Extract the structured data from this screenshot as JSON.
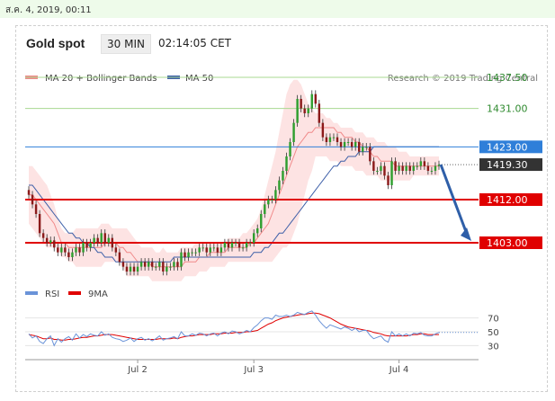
{
  "timestamp": "ส.ค. 4, 2019, 00:11",
  "header": {
    "instrument": "Gold spot",
    "timeframe": "30 MIN",
    "time": "02:14:05 CET"
  },
  "colors": {
    "candle_up": "#2e9e2e",
    "candle_down": "#8b1a1a",
    "bollinger": "#f08a8a",
    "bollinger_fill": "#fde0e0",
    "ma50": "#3d5fa8",
    "level_red": "#e00000",
    "level_green": "#a8d890",
    "level_blue": "#2f7fd9",
    "price": "#333333",
    "rsi": "#6a93d8",
    "rsi_ma": "#e00000",
    "arrow": "#2f5fa8"
  },
  "chart_data": [
    {
      "type": "candlestick",
      "legend": [
        {
          "label": "MA 20 + Bollinger Bands",
          "color": "#f08a8a"
        },
        {
          "label": "MA 50",
          "color": "#3d5fa8"
        }
      ],
      "credit": "Research © 2019 Trading Central",
      "x_tick_labels": [
        "Jul 2",
        "Jul 3",
        "Jul 4"
      ],
      "ylim": [
        1397,
        1442
      ],
      "levels": [
        {
          "value": 1437.5,
          "label": "1437.50",
          "style": "green-line"
        },
        {
          "value": 1431.0,
          "label": "1431.00",
          "style": "green-line"
        },
        {
          "value": 1423.0,
          "label": "1423.00",
          "style": "blue-box"
        },
        {
          "value": 1419.3,
          "label": "1419.30",
          "style": "current-price"
        },
        {
          "value": 1412.0,
          "label": "1412.00",
          "style": "red-box"
        },
        {
          "value": 1403.0,
          "label": "1403.00",
          "style": "red-box"
        }
      ],
      "close": [
        1413,
        1411,
        1409,
        1405,
        1404,
        1403,
        1403.5,
        1402,
        1401,
        1402,
        1401,
        1400,
        1401,
        1402,
        1401,
        1403,
        1402,
        1403,
        1404,
        1403,
        1405,
        1403,
        1404,
        1402,
        1401,
        1399,
        1398,
        1397,
        1398,
        1397,
        1398,
        1399,
        1398,
        1399,
        1398,
        1398,
        1399,
        1397,
        1398,
        1398,
        1399,
        1398,
        1401,
        1400,
        1401,
        1401,
        1401,
        1402,
        1402,
        1401,
        1402,
        1402,
        1401,
        1402,
        1403,
        1402,
        1403,
        1403,
        1402,
        1402,
        1403,
        1403,
        1405,
        1406,
        1409,
        1411,
        1412,
        1412,
        1414,
        1416,
        1418,
        1421,
        1424,
        1428,
        1433,
        1431,
        1430,
        1431,
        1434,
        1432,
        1428,
        1425,
        1424,
        1425,
        1425,
        1424,
        1423,
        1424,
        1424,
        1423,
        1424,
        1422,
        1423,
        1423,
        1420,
        1418,
        1418,
        1419,
        1417,
        1415,
        1420,
        1418,
        1419,
        1418,
        1419,
        1418,
        1419,
        1419,
        1420,
        1419,
        1418,
        1418,
        1419,
        1419.3
      ],
      "bollinger_upper": [
        1419,
        1419,
        1418,
        1417,
        1416,
        1415,
        1413,
        1411,
        1408,
        1406,
        1405,
        1405,
        1405,
        1406,
        1406,
        1406,
        1406,
        1406,
        1406,
        1406,
        1407,
        1407,
        1407,
        1406,
        1406,
        1406,
        1406,
        1406,
        1405,
        1404,
        1403,
        1402,
        1402,
        1402,
        1402,
        1401,
        1401,
        1402,
        1401,
        1401,
        1401,
        1401,
        1402,
        1402,
        1402,
        1402,
        1403,
        1403,
        1403,
        1403,
        1403,
        1403,
        1403,
        1403,
        1403,
        1404,
        1404,
        1404,
        1404,
        1405,
        1405,
        1406,
        1407,
        1408,
        1410,
        1413,
        1416,
        1419,
        1422,
        1426,
        1430,
        1434,
        1436,
        1437,
        1437,
        1436,
        1434,
        1432,
        1431,
        1430,
        1430,
        1430,
        1429,
        1429,
        1428,
        1428,
        1427,
        1427,
        1427,
        1427,
        1426,
        1426,
        1426,
        1425,
        1425,
        1425,
        1424,
        1424,
        1424,
        1423,
        1423,
        1423,
        1422,
        1422,
        1422,
        1421,
        1421,
        1421,
        1421,
        1421,
        1421,
        1421,
        1421,
        1421
      ],
      "bollinger_middle": [
        1413,
        1413,
        1412,
        1411,
        1410,
        1409,
        1408,
        1407,
        1405,
        1403,
        1403,
        1402,
        1402,
        1402,
        1402,
        1402,
        1402,
        1402,
        1402,
        1402,
        1402,
        1403,
        1403,
        1403,
        1403,
        1402,
        1402,
        1401,
        1401,
        1400,
        1399,
        1399,
        1399,
        1399,
        1398,
        1398,
        1398,
        1398,
        1398,
        1398,
        1398,
        1398,
        1398,
        1399,
        1399,
        1399,
        1399,
        1400,
        1400,
        1400,
        1401,
        1401,
        1401,
        1401,
        1401,
        1402,
        1402,
        1402,
        1402,
        1402,
        1402,
        1403,
        1403,
        1404,
        1405,
        1406,
        1407,
        1409,
        1411,
        1413,
        1415,
        1417,
        1419,
        1421,
        1423,
        1424,
        1425,
        1426,
        1426,
        1427,
        1427,
        1427,
        1427,
        1427,
        1427,
        1426,
        1426,
        1425,
        1425,
        1425,
        1424,
        1424,
        1423,
        1423,
        1422,
        1421,
        1421,
        1420,
        1420,
        1420,
        1420,
        1419,
        1419,
        1419,
        1419,
        1419,
        1419,
        1419,
        1419,
        1419,
        1419,
        1419,
        1419,
        1419
      ],
      "bollinger_lower": [
        1407,
        1406,
        1405,
        1404,
        1403,
        1402,
        1402,
        1402,
        1402,
        1400,
        1400,
        1399,
        1399,
        1398,
        1398,
        1398,
        1398,
        1398,
        1398,
        1398,
        1398,
        1399,
        1399,
        1399,
        1399,
        1399,
        1398,
        1396,
        1396,
        1396,
        1396,
        1396,
        1396,
        1396,
        1395,
        1395,
        1395,
        1395,
        1395,
        1395,
        1395,
        1395,
        1395,
        1396,
        1396,
        1396,
        1396,
        1397,
        1397,
        1397,
        1398,
        1398,
        1398,
        1398,
        1398,
        1399,
        1399,
        1399,
        1399,
        1399,
        1399,
        1399,
        1399,
        1399,
        1399,
        1399,
        1399,
        1399,
        1400,
        1401,
        1402,
        1402,
        1403,
        1405,
        1407,
        1410,
        1413,
        1416,
        1418,
        1421,
        1421,
        1421,
        1421,
        1420,
        1420,
        1420,
        1419,
        1419,
        1419,
        1419,
        1418,
        1418,
        1418,
        1417,
        1417,
        1417,
        1417,
        1416,
        1416,
        1416,
        1416,
        1416,
        1416,
        1416,
        1416,
        1416,
        1417,
        1417,
        1417,
        1417,
        1417,
        1417,
        1417,
        1417
      ],
      "ma50": [
        1415,
        1415,
        1414,
        1413,
        1412,
        1411,
        1410,
        1409,
        1408,
        1407,
        1406,
        1405,
        1405,
        1404,
        1404,
        1403,
        1403,
        1402,
        1402,
        1401,
        1401,
        1400,
        1400,
        1400,
        1399,
        1399,
        1399,
        1399,
        1399,
        1399,
        1399,
        1399,
        1399,
        1399,
        1399,
        1399,
        1399,
        1399,
        1399,
        1399,
        1400,
        1400,
        1400,
        1400,
        1400,
        1400,
        1400,
        1400,
        1400,
        1400,
        1400,
        1400,
        1400,
        1400,
        1400,
        1400,
        1400,
        1400,
        1400,
        1400,
        1400,
        1400,
        1401,
        1401,
        1401,
        1402,
        1402,
        1403,
        1404,
        1405,
        1405,
        1406,
        1407,
        1408,
        1409,
        1410,
        1411,
        1412,
        1413,
        1414,
        1415,
        1416,
        1417,
        1418,
        1419,
        1419,
        1420,
        1420,
        1421,
        1421,
        1421,
        1422,
        1422,
        1422,
        1422,
        1423,
        1423,
        1423,
        1423,
        1423,
        1423,
        1423,
        1423,
        1423,
        1423,
        1423,
        1423,
        1423,
        1423,
        1423,
        1423,
        1423,
        1423,
        1423
      ]
    },
    {
      "type": "line",
      "legend": [
        {
          "label": "RSI",
          "color": "#6a93d8"
        },
        {
          "label": "9MA",
          "color": "#e00000"
        }
      ],
      "ylim": [
        15,
        85
      ],
      "y_ticks": [
        "70",
        "50",
        "30"
      ],
      "series": [
        {
          "name": "RSI",
          "values": [
            47,
            41,
            44,
            36,
            33,
            40,
            44,
            30,
            40,
            35,
            40,
            43,
            38,
            47,
            41,
            46,
            43,
            47,
            45,
            44,
            50,
            45,
            47,
            42,
            40,
            39,
            36,
            38,
            41,
            36,
            40,
            42,
            38,
            40,
            37,
            40,
            44,
            38,
            40,
            41,
            43,
            40,
            50,
            44,
            44,
            47,
            45,
            48,
            47,
            44,
            47,
            48,
            44,
            48,
            50,
            47,
            51,
            50,
            47,
            49,
            52,
            50,
            56,
            60,
            66,
            70,
            70,
            68,
            74,
            72,
            72,
            74,
            72,
            74,
            78,
            76,
            75,
            78,
            80,
            74,
            66,
            60,
            55,
            60,
            58,
            56,
            54,
            57,
            55,
            52,
            55,
            50,
            52,
            52,
            45,
            40,
            42,
            44,
            38,
            35,
            50,
            44,
            47,
            44,
            47,
            44,
            48,
            47,
            49,
            45,
            44,
            44,
            47,
            49
          ]
        },
        {
          "name": "9MA",
          "values": [
            46,
            45,
            44,
            42,
            40,
            40,
            41,
            39,
            39,
            38,
            38,
            39,
            39,
            40,
            41,
            42,
            42,
            43,
            44,
            44,
            45,
            46,
            46,
            46,
            45,
            44,
            43,
            42,
            41,
            40,
            39,
            39,
            39,
            39,
            39,
            39,
            40,
            40,
            40,
            40,
            41,
            40,
            42,
            43,
            44,
            44,
            45,
            46,
            46,
            46,
            46,
            47,
            47,
            47,
            48,
            48,
            48,
            49,
            49,
            49,
            50,
            50,
            51,
            52,
            55,
            58,
            61,
            63,
            66,
            68,
            70,
            71,
            72,
            73,
            74,
            75,
            75,
            76,
            77,
            77,
            76,
            74,
            72,
            70,
            67,
            64,
            61,
            59,
            57,
            56,
            55,
            54,
            53,
            52,
            51,
            49,
            48,
            47,
            45,
            44,
            44,
            44,
            44,
            44,
            44,
            45,
            46,
            46,
            47,
            47,
            46,
            46,
            46,
            46
          ]
        }
      ]
    }
  ]
}
